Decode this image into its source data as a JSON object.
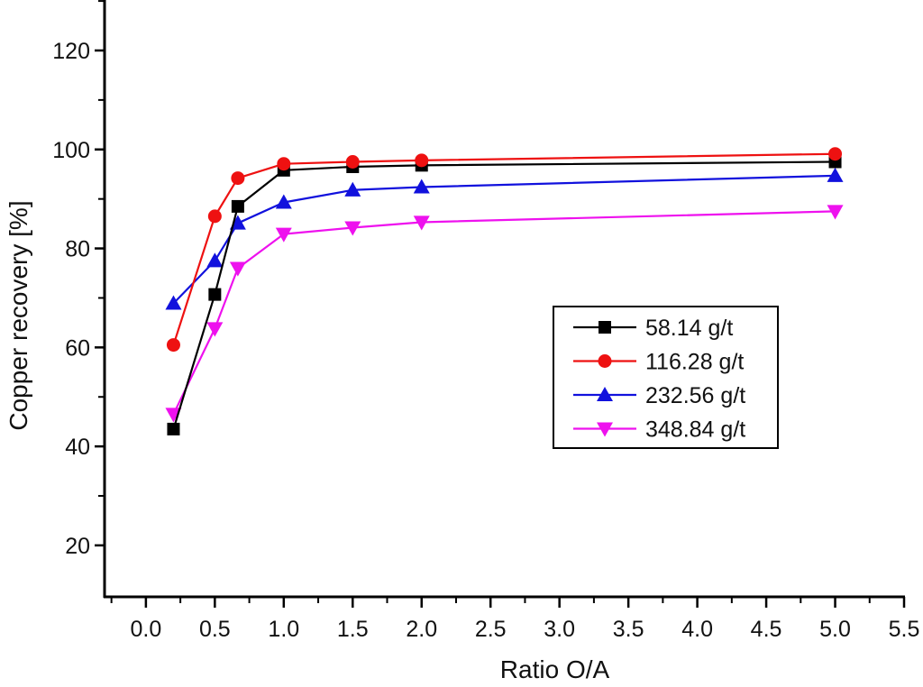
{
  "chart_data": {
    "type": "line",
    "title": "",
    "xlabel": "Ratio O/A",
    "ylabel": "Copper recovery [%]",
    "xlim": [
      -0.3,
      5.5
    ],
    "ylim": [
      9.6,
      130.2
    ],
    "xticks": [
      "0.0",
      "0.5",
      "1.0",
      "1.5",
      "2.0",
      "2.5",
      "3.0",
      "3.5",
      "4.0",
      "4.5",
      "5.0",
      "5.5"
    ],
    "xtick_values": [
      0.0,
      0.5,
      1.0,
      1.5,
      2.0,
      2.5,
      3.0,
      3.5,
      4.0,
      4.5,
      5.0,
      5.5
    ],
    "yticks": [
      "20",
      "40",
      "60",
      "80",
      "100",
      "120"
    ],
    "ytick_values": [
      20,
      40,
      60,
      80,
      100,
      120
    ],
    "grid": false,
    "legend_position": "center-right",
    "x": [
      0.2,
      0.5,
      0.667,
      1.0,
      1.5,
      2.0,
      5.0
    ],
    "series": [
      {
        "name": "58.14 g/t",
        "color": "#000000",
        "marker": "square",
        "values": [
          43.5,
          70.7,
          88.5,
          95.8,
          96.5,
          96.8,
          97.5
        ]
      },
      {
        "name": "116.28 g/t",
        "color": "#ee1111",
        "marker": "circle",
        "values": [
          60.5,
          86.5,
          94.2,
          97.1,
          97.5,
          97.8,
          99.1
        ]
      },
      {
        "name": "232.56 g/t",
        "color": "#1111dd",
        "marker": "triangle-up",
        "values": [
          68.9,
          77.5,
          85.1,
          89.3,
          91.8,
          92.4,
          94.7
        ]
      },
      {
        "name": "348.84 g/t",
        "color": "#ee11ee",
        "marker": "triangle-down",
        "values": [
          46.5,
          63.8,
          76.0,
          82.9,
          84.2,
          85.3,
          87.5
        ]
      }
    ]
  }
}
